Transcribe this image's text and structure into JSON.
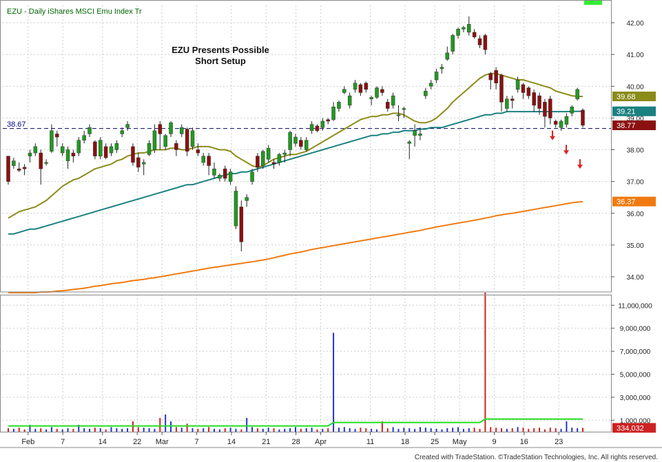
{
  "header": {
    "symbol_title": "EZU - Daily  iShares MSCI Emu Index Tr"
  },
  "annotation": {
    "line1": "EZU Presents Possible",
    "line2": "Short Setup"
  },
  "footer": {
    "credit": "Created with TradeStation. ©TradeStation Technologies, Inc. All rights reserved."
  },
  "colors": {
    "up_candle": "#229922",
    "down_candle": "#8b1010",
    "ma_fast": "#8b8b1a",
    "ma_mid": "#1a8080",
    "ma_slow": "#f07a10",
    "volume_avg": "#22dd22",
    "volume_up": "#2233cc",
    "volume_down": "#cc2222",
    "arrow": "#dd2222",
    "ref_line": "#000066"
  },
  "chart_data": [
    {
      "type": "candlestick",
      "title": "EZU - Daily  iShares MSCI Emu Index Tr",
      "annotation": "EZU Presents Possible Short Setup",
      "x_tick_labels": [
        "Feb",
        "7",
        "14",
        "22",
        "Mar",
        "7",
        "14",
        "21",
        "28",
        "Apr",
        "11",
        "18",
        "25",
        "May",
        "9",
        "16",
        "23"
      ],
      "y_ticks": [
        "42.00",
        "41.00",
        "40.00",
        "39.00",
        "38.00",
        "37.00",
        "36.00",
        "35.00",
        "34.00"
      ],
      "ylim": [
        33.5,
        42.5
      ],
      "reference_line": {
        "value": 38.67,
        "label": "38.67"
      },
      "last_value_labels": [
        {
          "series": "ma_fast",
          "value": "39.68"
        },
        {
          "series": "ma_mid",
          "value": "39.21"
        },
        {
          "series": "price",
          "value": "38.77"
        },
        {
          "series": "ma_slow",
          "value": "36.37"
        }
      ],
      "candles": [
        [
          37.8,
          37.0,
          37.5,
          36.9
        ],
        [
          37.5,
          37.65,
          37.75,
          37.4
        ],
        [
          37.4,
          37.35,
          37.6,
          37.3
        ],
        [
          37.45,
          37.4,
          37.55,
          37.2
        ],
        [
          37.8,
          37.9,
          38.0,
          37.6
        ],
        [
          37.9,
          38.1,
          38.2,
          37.8
        ],
        [
          37.9,
          37.4,
          38.0,
          36.9
        ],
        [
          37.6,
          37.6,
          37.7,
          37.5
        ],
        [
          37.95,
          38.6,
          38.8,
          37.9
        ],
        [
          38.5,
          38.4,
          38.6,
          38.1
        ],
        [
          37.9,
          38.1,
          38.2,
          37.8
        ],
        [
          37.65,
          38.0,
          38.1,
          37.4
        ],
        [
          37.9,
          37.8,
          38.0,
          37.6
        ],
        [
          37.9,
          38.3,
          38.4,
          37.8
        ],
        [
          38.3,
          38.45,
          38.6,
          38.2
        ],
        [
          38.5,
          38.7,
          38.8,
          38.4
        ],
        [
          38.25,
          37.8,
          38.3,
          37.7
        ],
        [
          37.8,
          38.3,
          38.4,
          37.7
        ],
        [
          38.1,
          37.75,
          38.2,
          37.7
        ],
        [
          37.9,
          38.1,
          38.2,
          37.8
        ],
        [
          38.0,
          38.2,
          38.3,
          37.9
        ],
        [
          38.5,
          38.6,
          38.7,
          38.4
        ],
        [
          38.7,
          38.8,
          38.9,
          38.6
        ],
        [
          38.1,
          37.6,
          38.2,
          37.5
        ],
        [
          37.75,
          37.45,
          37.9,
          37.3
        ],
        [
          37.55,
          37.6,
          37.7,
          37.2
        ],
        [
          37.85,
          38.2,
          38.3,
          37.8
        ],
        [
          38.0,
          38.6,
          38.8,
          37.9
        ],
        [
          38.8,
          38.5,
          38.9,
          38.0
        ],
        [
          38.1,
          38.45,
          38.5,
          38.0
        ],
        [
          38.5,
          38.85,
          38.9,
          38.4
        ],
        [
          38.2,
          38.0,
          38.3,
          37.8
        ],
        [
          38.5,
          38.7,
          38.8,
          38.4
        ],
        [
          38.65,
          37.95,
          38.7,
          37.8
        ],
        [
          38.1,
          38.6,
          38.7,
          38.0
        ],
        [
          38.0,
          37.9,
          38.2,
          37.8
        ],
        [
          37.6,
          37.8,
          37.9,
          37.5
        ],
        [
          37.8,
          37.5,
          37.9,
          37.2
        ],
        [
          37.2,
          37.4,
          37.6,
          37.1
        ],
        [
          37.1,
          37.2,
          37.25,
          37.0
        ],
        [
          37.4,
          37.1,
          37.5,
          37.0
        ],
        [
          37.0,
          37.3,
          37.4,
          36.9
        ],
        [
          35.6,
          36.7,
          36.85,
          35.5
        ],
        [
          36.2,
          35.1,
          36.4,
          34.8
        ],
        [
          36.4,
          36.5,
          36.6,
          36.2
        ],
        [
          37.0,
          37.3,
          37.4,
          36.9
        ],
        [
          37.8,
          37.45,
          37.9,
          37.3
        ],
        [
          37.5,
          37.95,
          38.0,
          37.4
        ],
        [
          37.7,
          38.05,
          38.15,
          37.6
        ],
        [
          37.6,
          37.55,
          37.7,
          37.4
        ],
        [
          37.6,
          37.85,
          37.9,
          37.5
        ],
        [
          37.85,
          37.9,
          38.0,
          37.6
        ],
        [
          38.0,
          38.55,
          38.6,
          37.8
        ],
        [
          38.2,
          38.4,
          38.5,
          38.1
        ],
        [
          38.3,
          38.1,
          38.4,
          38.0
        ],
        [
          38.0,
          38.3,
          38.4,
          37.95
        ],
        [
          38.6,
          38.8,
          38.9,
          38.5
        ],
        [
          38.75,
          38.6,
          38.8,
          38.55
        ],
        [
          38.7,
          38.9,
          39.0,
          38.6
        ],
        [
          38.95,
          38.9,
          39.0,
          38.8
        ],
        [
          38.95,
          39.35,
          39.5,
          38.9
        ],
        [
          39.3,
          39.5,
          39.55,
          39.2
        ],
        [
          39.8,
          39.9,
          40.0,
          39.75
        ],
        [
          39.4,
          39.7,
          39.8,
          39.3
        ],
        [
          39.9,
          40.1,
          40.2,
          39.8
        ],
        [
          40.05,
          39.8,
          40.1,
          39.7
        ],
        [
          40.1,
          39.9,
          40.15,
          39.8
        ],
        [
          39.6,
          39.65,
          39.7,
          39.4
        ],
        [
          39.65,
          39.95,
          40.0,
          39.6
        ],
        [
          39.9,
          39.8,
          40.0,
          39.7
        ],
        [
          39.5,
          39.3,
          39.6,
          39.2
        ],
        [
          39.4,
          39.7,
          39.8,
          39.3
        ],
        [
          39.1,
          39.1,
          39.4,
          38.9
        ],
        [
          39.3,
          39.3,
          39.35,
          39.0
        ],
        [
          38.2,
          38.25,
          38.3,
          37.7
        ],
        [
          38.45,
          38.6,
          38.8,
          38.1
        ],
        [
          38.45,
          38.5,
          38.7,
          38.3
        ],
        [
          39.7,
          39.85,
          39.95,
          39.6
        ],
        [
          40.0,
          40.1,
          40.2,
          39.9
        ],
        [
          40.2,
          40.45,
          40.55,
          40.1
        ],
        [
          40.55,
          40.6,
          40.7,
          40.4
        ],
        [
          40.85,
          41.05,
          41.25,
          40.8
        ],
        [
          41.1,
          41.6,
          41.65,
          41.0
        ],
        [
          41.6,
          41.8,
          41.85,
          41.5
        ],
        [
          41.8,
          41.85,
          41.9,
          41.7
        ],
        [
          41.7,
          41.95,
          42.2,
          41.6
        ],
        [
          41.7,
          41.55,
          41.8,
          41.5
        ],
        [
          41.5,
          41.3,
          41.6,
          41.2
        ],
        [
          41.6,
          41.15,
          41.65,
          41.0
        ],
        [
          40.4,
          40.2,
          40.45,
          39.9
        ],
        [
          40.5,
          40.1,
          40.6,
          39.9
        ],
        [
          40.35,
          39.5,
          40.4,
          39.2
        ],
        [
          39.3,
          39.6,
          39.7,
          39.2
        ],
        [
          39.6,
          39.55,
          39.7,
          39.3
        ],
        [
          39.9,
          40.2,
          40.3,
          39.8
        ],
        [
          40.05,
          39.8,
          40.1,
          39.6
        ],
        [
          39.95,
          39.7,
          40.0,
          39.6
        ],
        [
          39.8,
          39.4,
          39.9,
          39.2
        ],
        [
          39.7,
          39.3,
          39.8,
          39.1
        ],
        [
          39.5,
          39.05,
          39.6,
          38.7
        ],
        [
          39.6,
          39.0,
          39.7,
          38.8
        ],
        [
          38.9,
          38.8,
          38.95,
          38.7
        ],
        [
          38.7,
          38.9,
          38.95,
          38.6
        ],
        [
          38.8,
          39.05,
          39.15,
          38.7
        ],
        [
          39.15,
          39.35,
          39.4,
          39.05
        ],
        [
          39.6,
          39.9,
          39.95,
          39.55
        ],
        [
          39.25,
          38.77,
          39.3,
          38.7
        ]
      ],
      "ma_fast": [
        35.85,
        35.95,
        36.05,
        36.1,
        36.15,
        36.2,
        36.3,
        36.4,
        36.55,
        36.7,
        36.85,
        36.95,
        37.05,
        37.1,
        37.2,
        37.3,
        37.4,
        37.45,
        37.5,
        37.55,
        37.65,
        37.7,
        37.8,
        37.85,
        37.9,
        37.9,
        37.95,
        38.0,
        38.0,
        38.0,
        38.05,
        38.05,
        38.0,
        38.0,
        38.05,
        38.1,
        38.1,
        38.1,
        38.05,
        38.0,
        38.0,
        37.95,
        37.8,
        37.7,
        37.6,
        37.5,
        37.45,
        37.5,
        37.6,
        37.7,
        37.75,
        37.8,
        37.85,
        37.85,
        37.9,
        37.95,
        38.05,
        38.15,
        38.25,
        38.35,
        38.45,
        38.55,
        38.65,
        38.75,
        38.85,
        38.95,
        39.0,
        39.05,
        39.05,
        39.1,
        39.1,
        39.15,
        39.15,
        39.1,
        39.0,
        38.9,
        38.85,
        38.85,
        38.9,
        39.0,
        39.15,
        39.3,
        39.5,
        39.65,
        39.8,
        39.95,
        40.1,
        40.25,
        40.35,
        40.4,
        40.4,
        40.35,
        40.3,
        40.25,
        40.2,
        40.2,
        40.15,
        40.1,
        40.05,
        40.0,
        39.95,
        39.85,
        39.8,
        39.75,
        39.7,
        39.68,
        39.68
      ],
      "ma_mid": [
        35.35,
        35.35,
        35.4,
        35.45,
        35.5,
        35.5,
        35.55,
        35.6,
        35.65,
        35.7,
        35.75,
        35.8,
        35.85,
        35.9,
        35.95,
        36.0,
        36.05,
        36.1,
        36.15,
        36.2,
        36.25,
        36.3,
        36.35,
        36.4,
        36.45,
        36.5,
        36.55,
        36.6,
        36.65,
        36.7,
        36.75,
        36.8,
        36.85,
        36.9,
        36.9,
        36.95,
        37.0,
        37.05,
        37.1,
        37.15,
        37.2,
        37.25,
        37.25,
        37.3,
        37.3,
        37.35,
        37.4,
        37.45,
        37.5,
        37.55,
        37.6,
        37.65,
        37.7,
        37.75,
        37.8,
        37.85,
        37.9,
        37.95,
        38.0,
        38.05,
        38.1,
        38.15,
        38.2,
        38.25,
        38.3,
        38.35,
        38.4,
        38.45,
        38.45,
        38.5,
        38.5,
        38.55,
        38.55,
        38.6,
        38.6,
        38.6,
        38.65,
        38.65,
        38.7,
        38.7,
        38.7,
        38.75,
        38.8,
        38.85,
        38.9,
        38.95,
        39.0,
        39.05,
        39.1,
        39.1,
        39.15,
        39.15,
        39.2,
        39.2,
        39.2,
        39.2,
        39.2,
        39.2,
        39.2,
        39.2,
        39.2,
        39.2,
        39.2,
        39.2,
        39.21,
        39.21,
        39.21
      ],
      "ma_slow": [
        33.5,
        33.5,
        33.5,
        33.5,
        33.5,
        33.5,
        33.52,
        33.52,
        33.53,
        33.55,
        33.56,
        33.58,
        33.6,
        33.62,
        33.64,
        33.67,
        33.7,
        33.72,
        33.75,
        33.78,
        33.8,
        33.82,
        33.85,
        33.88,
        33.9,
        33.92,
        33.95,
        33.97,
        34.0,
        34.03,
        34.06,
        34.09,
        34.12,
        34.15,
        34.18,
        34.21,
        34.24,
        34.27,
        34.3,
        34.32,
        34.35,
        34.37,
        34.4,
        34.42,
        34.45,
        34.47,
        34.5,
        34.53,
        34.56,
        34.6,
        34.64,
        34.68,
        34.72,
        34.75,
        34.78,
        34.82,
        34.86,
        34.89,
        34.92,
        34.95,
        34.98,
        35.01,
        35.04,
        35.07,
        35.1,
        35.13,
        35.16,
        35.19,
        35.22,
        35.25,
        35.28,
        35.31,
        35.34,
        35.37,
        35.4,
        35.43,
        35.46,
        35.5,
        35.53,
        35.57,
        35.6,
        35.63,
        35.66,
        35.69,
        35.72,
        35.75,
        35.78,
        35.81,
        35.85,
        35.88,
        35.92,
        35.95,
        35.98,
        36.0,
        36.03,
        36.06,
        36.09,
        36.12,
        36.15,
        36.18,
        36.21,
        36.24,
        36.27,
        36.3,
        36.33,
        36.35,
        36.37
      ],
      "signal_arrows": [
        38.3,
        37.85,
        37.4
      ]
    },
    {
      "type": "bar",
      "title": "Volume",
      "y_ticks": [
        "11,000,000",
        "9,000,000",
        "7,000,000",
        "5,000,000",
        "3,000,000",
        "1,000,000"
      ],
      "ylim": [
        0,
        12500000
      ],
      "last_value_label": "334,032",
      "volume": [
        300000,
        250000,
        350000,
        200000,
        600000,
        250000,
        300000,
        200000,
        400000,
        250000,
        200000,
        300000,
        250000,
        600000,
        300000,
        250000,
        350000,
        300000,
        200000,
        400000,
        300000,
        250000,
        300000,
        900000,
        400000,
        350000,
        300000,
        250000,
        1200000,
        1500000,
        900000,
        400000,
        350000,
        700000,
        300000,
        250000,
        300000,
        400000,
        250000,
        200000,
        300000,
        350000,
        250000,
        200000,
        1200000,
        400000,
        300000,
        250000,
        350000,
        300000,
        200000,
        250000,
        300000,
        400000,
        250000,
        300000,
        350000,
        200000,
        250000,
        300000,
        8600000,
        350000,
        400000,
        300000,
        250000,
        350000,
        300000,
        250000,
        200000,
        900000,
        300000,
        400000,
        250000,
        350000,
        300000,
        250000,
        400000,
        350000,
        300000,
        250000,
        200000,
        300000,
        350000,
        400000,
        250000,
        300000,
        350000,
        250000,
        12100000,
        400000,
        350000,
        300000,
        250000,
        300000,
        400000,
        350000,
        250000,
        300000,
        350000,
        200000,
        350000,
        300000,
        250000,
        900000,
        350000,
        300000,
        334032
      ],
      "volume_avg": [
        500000,
        500000,
        500000,
        500000,
        500000,
        500000,
        500000,
        500000,
        500000,
        500000,
        500000,
        500000,
        500000,
        500000,
        500000,
        500000,
        500000,
        500000,
        500000,
        500000,
        500000,
        500000,
        500000,
        500000,
        500000,
        500000,
        500000,
        500000,
        500000,
        500000,
        500000,
        500000,
        500000,
        500000,
        500000,
        500000,
        500000,
        500000,
        500000,
        500000,
        500000,
        500000,
        500000,
        500000,
        500000,
        500000,
        500000,
        500000,
        500000,
        500000,
        500000,
        500000,
        500000,
        500000,
        500000,
        500000,
        500000,
        500000,
        500000,
        500000,
        800000,
        800000,
        800000,
        800000,
        800000,
        800000,
        800000,
        800000,
        800000,
        800000,
        800000,
        800000,
        800000,
        800000,
        800000,
        800000,
        800000,
        800000,
        800000,
        800000,
        800000,
        800000,
        800000,
        800000,
        800000,
        800000,
        800000,
        800000,
        1100000,
        1100000,
        1100000,
        1100000,
        1100000,
        1100000,
        1100000,
        1100000,
        1100000,
        1100000,
        1100000,
        1100000,
        1100000,
        1100000,
        1100000,
        1100000,
        1100000,
        1100000,
        1100000
      ]
    }
  ]
}
